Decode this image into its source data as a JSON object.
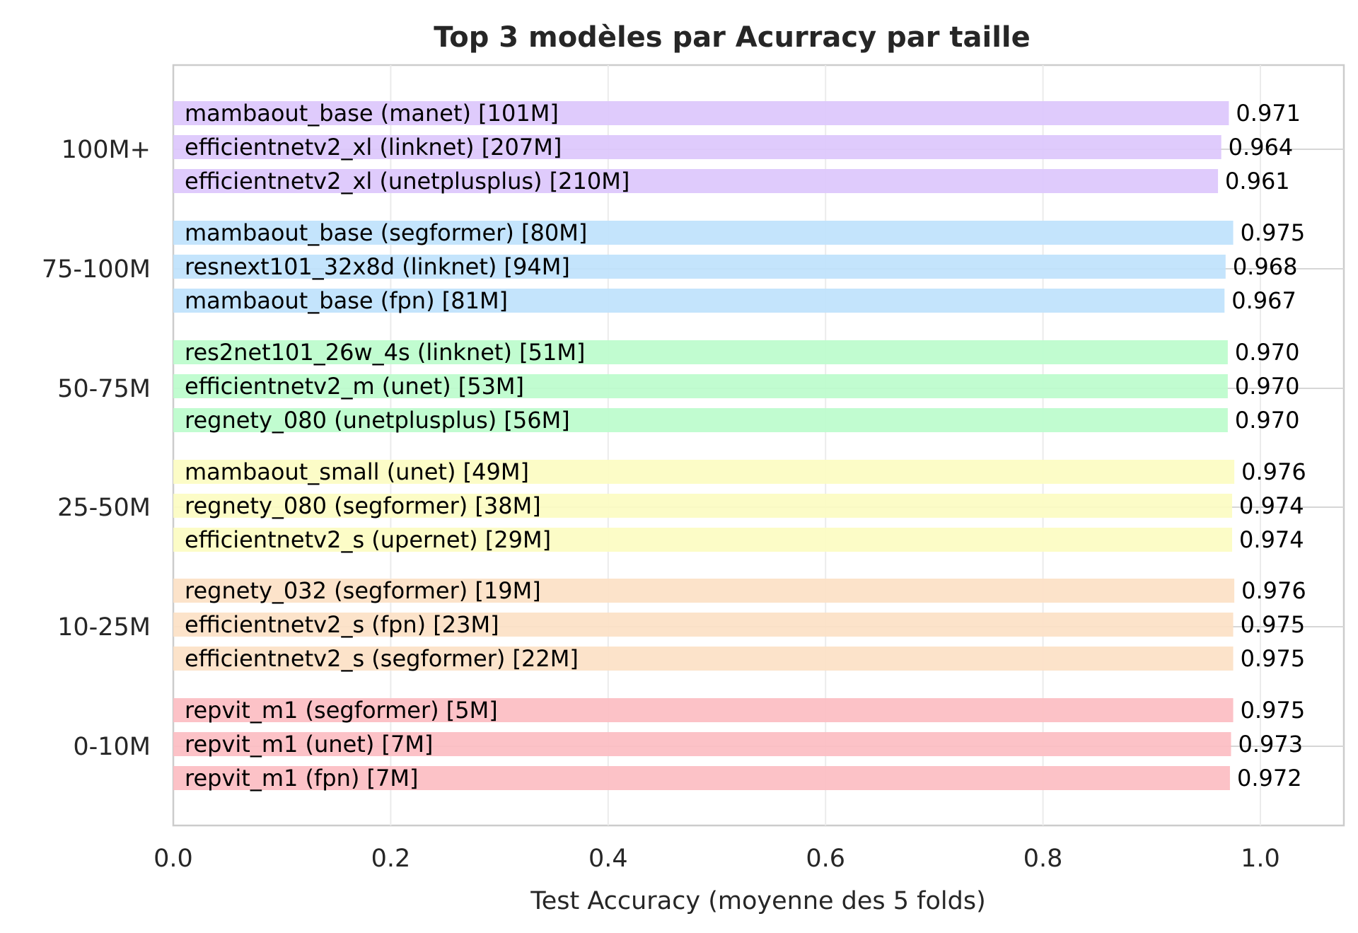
{
  "chart_data": {
    "type": "bar",
    "orientation": "horizontal",
    "title": "Top 3 modèles par Acurracy par taille",
    "xlabel": "Test Accuracy (moyenne des 5 folds)",
    "ylabel": "",
    "xlim": [
      0.0,
      1.075
    ],
    "xticks": [
      "0.0",
      "0.2",
      "0.4",
      "0.6",
      "0.8",
      "1.0"
    ],
    "xtick_values": [
      0.0,
      0.2,
      0.4,
      0.6,
      0.8,
      1.0
    ],
    "grid": true,
    "legend": "none",
    "groups": [
      {
        "name": "100M+",
        "color": "#dcc7fc",
        "bars": [
          {
            "label": "mambaout_base (manet) [101M]",
            "value": 0.971,
            "value_text": "0.971"
          },
          {
            "label": "efficientnetv2_xl (linknet) [207M]",
            "value": 0.964,
            "value_text": "0.964"
          },
          {
            "label": "efficientnetv2_xl (unetplusplus) [210M]",
            "value": 0.961,
            "value_text": "0.961"
          }
        ]
      },
      {
        "name": "75-100M",
        "color": "#bfe2fc",
        "bars": [
          {
            "label": "mambaout_base (segformer) [80M]",
            "value": 0.975,
            "value_text": "0.975"
          },
          {
            "label": "resnext101_32x8d (linknet) [94M]",
            "value": 0.968,
            "value_text": "0.968"
          },
          {
            "label": "mambaout_base (fpn) [81M]",
            "value": 0.967,
            "value_text": "0.967"
          }
        ]
      },
      {
        "name": "50-75M",
        "color": "#bcfccc",
        "bars": [
          {
            "label": "res2net101_26w_4s (linknet) [51M]",
            "value": 0.97,
            "value_text": "0.970"
          },
          {
            "label": "efficientnetv2_m (unet) [53M]",
            "value": 0.97,
            "value_text": "0.970"
          },
          {
            "label": "regnety_080 (unetplusplus) [56M]",
            "value": 0.97,
            "value_text": "0.970"
          }
        ]
      },
      {
        "name": "25-50M",
        "color": "#fcfcc2",
        "bars": [
          {
            "label": "mambaout_small (unet) [49M]",
            "value": 0.976,
            "value_text": "0.976"
          },
          {
            "label": "regnety_080 (segformer) [38M]",
            "value": 0.974,
            "value_text": "0.974"
          },
          {
            "label": "efficientnetv2_s (upernet) [29M]",
            "value": 0.974,
            "value_text": "0.974"
          }
        ]
      },
      {
        "name": "10-25M",
        "color": "#fce1c5",
        "bars": [
          {
            "label": "regnety_032 (segformer) [19M]",
            "value": 0.976,
            "value_text": "0.976"
          },
          {
            "label": "efficientnetv2_s (fpn) [23M]",
            "value": 0.975,
            "value_text": "0.975"
          },
          {
            "label": "efficientnetv2_s (segformer) [22M]",
            "value": 0.975,
            "value_text": "0.975"
          }
        ]
      },
      {
        "name": "0-10M",
        "color": "#fcbdc2",
        "bars": [
          {
            "label": "repvit_m1 (segformer) [5M]",
            "value": 0.975,
            "value_text": "0.975"
          },
          {
            "label": "repvit_m1 (unet) [7M]",
            "value": 0.973,
            "value_text": "0.973"
          },
          {
            "label": "repvit_m1 (fpn) [7M]",
            "value": 0.972,
            "value_text": "0.972"
          }
        ]
      }
    ]
  }
}
